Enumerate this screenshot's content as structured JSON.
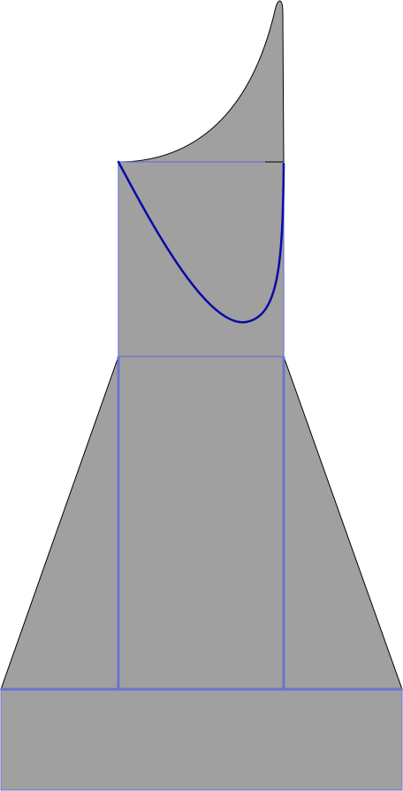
{
  "diagram": {
    "colors": {
      "fill": "#a0a0a0",
      "outline": "#000000",
      "frame": "#6a74d0",
      "curve": "#0a0aa8"
    },
    "shapes": [
      "base-rectangle",
      "trapezoid-body",
      "inner-column",
      "upper-square",
      "flame-top",
      "dip-curve"
    ]
  }
}
